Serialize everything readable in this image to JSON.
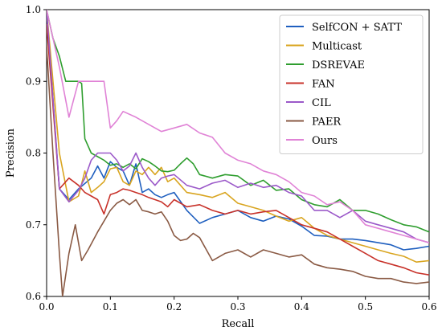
{
  "chart_data": {
    "type": "line",
    "xlabel": "Recall",
    "ylabel": "Precision",
    "xlim": [
      0.0,
      0.6
    ],
    "ylim": [
      0.6,
      1.0
    ],
    "x_ticks": [
      "0.0",
      "0.1",
      "0.2",
      "0.3",
      "0.4",
      "0.5",
      "0.6"
    ],
    "y_ticks": [
      "0.6",
      "0.7",
      "0.8",
      "0.9",
      "1.0"
    ],
    "x_tick_values": [
      0.0,
      0.1,
      0.2,
      0.3,
      0.4,
      0.5,
      0.6
    ],
    "y_tick_values": [
      0.6,
      0.7,
      0.8,
      0.9,
      1.0
    ],
    "grid": false,
    "legend_position": "top-right",
    "series": [
      {
        "name": "SelfCON + SATT",
        "color": "#1f5fbf",
        "x": [
          0.0,
          0.02,
          0.035,
          0.05,
          0.07,
          0.08,
          0.09,
          0.1,
          0.11,
          0.12,
          0.13,
          0.14,
          0.15,
          0.16,
          0.17,
          0.18,
          0.19,
          0.2,
          0.22,
          0.24,
          0.26,
          0.28,
          0.3,
          0.32,
          0.34,
          0.36,
          0.38,
          0.4,
          0.42,
          0.44,
          0.46,
          0.48,
          0.5,
          0.52,
          0.54,
          0.56,
          0.58,
          0.6
        ],
        "y": [
          1.0,
          0.75,
          0.735,
          0.75,
          0.765,
          0.782,
          0.765,
          0.788,
          0.78,
          0.775,
          0.755,
          0.785,
          0.745,
          0.75,
          0.742,
          0.738,
          0.742,
          0.745,
          0.72,
          0.702,
          0.71,
          0.715,
          0.72,
          0.71,
          0.705,
          0.712,
          0.708,
          0.698,
          0.685,
          0.684,
          0.68,
          0.68,
          0.678,
          0.675,
          0.672,
          0.665,
          0.667,
          0.67
        ]
      },
      {
        "name": "Multicast",
        "color": "#d9a520",
        "x": [
          0.0,
          0.02,
          0.035,
          0.05,
          0.06,
          0.07,
          0.08,
          0.09,
          0.1,
          0.11,
          0.12,
          0.13,
          0.14,
          0.15,
          0.16,
          0.17,
          0.18,
          0.19,
          0.2,
          0.22,
          0.24,
          0.26,
          0.28,
          0.3,
          0.32,
          0.34,
          0.36,
          0.38,
          0.4,
          0.42,
          0.44,
          0.46,
          0.48,
          0.5,
          0.52,
          0.54,
          0.56,
          0.58,
          0.6
        ],
        "y": [
          1.0,
          0.8,
          0.732,
          0.74,
          0.775,
          0.745,
          0.752,
          0.76,
          0.778,
          0.78,
          0.76,
          0.755,
          0.775,
          0.77,
          0.78,
          0.77,
          0.78,
          0.76,
          0.765,
          0.745,
          0.742,
          0.738,
          0.745,
          0.73,
          0.725,
          0.72,
          0.712,
          0.705,
          0.71,
          0.695,
          0.685,
          0.68,
          0.675,
          0.67,
          0.665,
          0.66,
          0.656,
          0.648,
          0.65
        ]
      },
      {
        "name": "DSREVAE",
        "color": "#2f9e2f",
        "x": [
          0.0,
          0.01,
          0.02,
          0.03,
          0.04,
          0.05,
          0.055,
          0.06,
          0.07,
          0.08,
          0.09,
          0.1,
          0.11,
          0.12,
          0.13,
          0.14,
          0.15,
          0.16,
          0.17,
          0.18,
          0.19,
          0.2,
          0.21,
          0.22,
          0.23,
          0.24,
          0.26,
          0.28,
          0.3,
          0.32,
          0.34,
          0.36,
          0.38,
          0.4,
          0.42,
          0.44,
          0.46,
          0.48,
          0.5,
          0.52,
          0.54,
          0.56,
          0.58,
          0.6
        ],
        "y": [
          1.0,
          0.96,
          0.935,
          0.9,
          0.9,
          0.9,
          0.897,
          0.82,
          0.8,
          0.795,
          0.79,
          0.783,
          0.785,
          0.78,
          0.785,
          0.778,
          0.792,
          0.788,
          0.782,
          0.775,
          0.774,
          0.776,
          0.785,
          0.793,
          0.785,
          0.77,
          0.765,
          0.77,
          0.768,
          0.755,
          0.762,
          0.748,
          0.75,
          0.735,
          0.728,
          0.725,
          0.735,
          0.72,
          0.72,
          0.715,
          0.707,
          0.7,
          0.697,
          0.69
        ]
      },
      {
        "name": "FAN",
        "color": "#c8322a",
        "x": [
          0.0,
          0.02,
          0.035,
          0.05,
          0.06,
          0.07,
          0.08,
          0.09,
          0.1,
          0.11,
          0.12,
          0.13,
          0.14,
          0.15,
          0.16,
          0.17,
          0.18,
          0.19,
          0.2,
          0.22,
          0.24,
          0.26,
          0.28,
          0.3,
          0.32,
          0.34,
          0.36,
          0.38,
          0.4,
          0.42,
          0.44,
          0.46,
          0.48,
          0.5,
          0.52,
          0.54,
          0.56,
          0.58,
          0.6
        ],
        "y": [
          0.98,
          0.75,
          0.765,
          0.755,
          0.745,
          0.74,
          0.735,
          0.715,
          0.742,
          0.745,
          0.75,
          0.748,
          0.745,
          0.742,
          0.738,
          0.735,
          0.732,
          0.725,
          0.735,
          0.725,
          0.728,
          0.72,
          0.715,
          0.72,
          0.715,
          0.718,
          0.72,
          0.71,
          0.7,
          0.695,
          0.69,
          0.68,
          0.67,
          0.66,
          0.65,
          0.645,
          0.64,
          0.633,
          0.63
        ]
      },
      {
        "name": "CIL",
        "color": "#9b59c9",
        "x": [
          0.0,
          0.02,
          0.035,
          0.05,
          0.06,
          0.07,
          0.08,
          0.09,
          0.1,
          0.11,
          0.12,
          0.13,
          0.14,
          0.15,
          0.16,
          0.17,
          0.18,
          0.19,
          0.2,
          0.22,
          0.24,
          0.26,
          0.28,
          0.3,
          0.32,
          0.34,
          0.36,
          0.38,
          0.4,
          0.42,
          0.44,
          0.46,
          0.48,
          0.5,
          0.52,
          0.54,
          0.56,
          0.58,
          0.6
        ],
        "y": [
          1.0,
          0.75,
          0.732,
          0.748,
          0.765,
          0.79,
          0.8,
          0.8,
          0.8,
          0.79,
          0.775,
          0.782,
          0.8,
          0.78,
          0.765,
          0.755,
          0.765,
          0.768,
          0.77,
          0.755,
          0.75,
          0.758,
          0.762,
          0.752,
          0.758,
          0.752,
          0.755,
          0.745,
          0.74,
          0.72,
          0.72,
          0.71,
          0.72,
          0.705,
          0.7,
          0.695,
          0.69,
          0.68,
          0.675
        ]
      },
      {
        "name": "PAER",
        "color": "#8a5a44",
        "x": [
          0.0,
          0.01,
          0.02,
          0.025,
          0.035,
          0.045,
          0.055,
          0.065,
          0.08,
          0.09,
          0.1,
          0.11,
          0.12,
          0.13,
          0.14,
          0.15,
          0.16,
          0.17,
          0.18,
          0.19,
          0.2,
          0.21,
          0.22,
          0.23,
          0.24,
          0.26,
          0.28,
          0.3,
          0.32,
          0.34,
          0.36,
          0.38,
          0.4,
          0.42,
          0.44,
          0.46,
          0.48,
          0.5,
          0.52,
          0.54,
          0.56,
          0.58,
          0.6
        ],
        "y": [
          0.95,
          0.8,
          0.66,
          0.6,
          0.66,
          0.7,
          0.65,
          0.665,
          0.69,
          0.705,
          0.72,
          0.73,
          0.735,
          0.728,
          0.735,
          0.72,
          0.718,
          0.715,
          0.718,
          0.705,
          0.685,
          0.678,
          0.68,
          0.688,
          0.682,
          0.65,
          0.66,
          0.665,
          0.655,
          0.665,
          0.66,
          0.655,
          0.658,
          0.645,
          0.64,
          0.638,
          0.635,
          0.628,
          0.625,
          0.625,
          0.62,
          0.618,
          0.62
        ]
      },
      {
        "name": "Ours",
        "color": "#e083d6",
        "x": [
          0.0,
          0.02,
          0.035,
          0.05,
          0.06,
          0.07,
          0.08,
          0.09,
          0.1,
          0.11,
          0.12,
          0.14,
          0.16,
          0.18,
          0.2,
          0.22,
          0.24,
          0.26,
          0.28,
          0.3,
          0.32,
          0.34,
          0.36,
          0.38,
          0.4,
          0.42,
          0.44,
          0.46,
          0.48,
          0.5,
          0.52,
          0.54,
          0.56,
          0.58,
          0.6
        ],
        "y": [
          1.0,
          0.92,
          0.85,
          0.9,
          0.9,
          0.9,
          0.9,
          0.9,
          0.835,
          0.845,
          0.858,
          0.85,
          0.84,
          0.83,
          0.835,
          0.84,
          0.828,
          0.822,
          0.8,
          0.79,
          0.785,
          0.775,
          0.77,
          0.76,
          0.745,
          0.74,
          0.728,
          0.732,
          0.72,
          0.7,
          0.695,
          0.69,
          0.685,
          0.68,
          0.675
        ]
      }
    ]
  }
}
